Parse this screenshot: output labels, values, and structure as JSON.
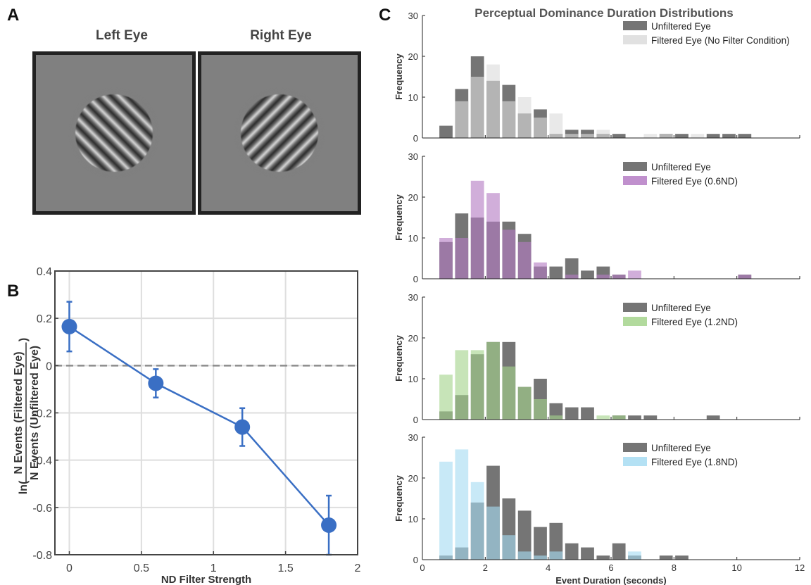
{
  "panels": {
    "a": "A",
    "b": "B",
    "c": "C"
  },
  "panel_a": {
    "left_title": "Left Eye",
    "right_title": "Right Eye"
  },
  "colors": {
    "marker_blue": "#3a6fc4",
    "unfiltered": "#6e6e6e",
    "no_filter": "#dcdcdc",
    "nd06": "#b57cc4",
    "nd12": "#a5d38c",
    "nd18": "#a7dcf2"
  },
  "chart_data": [
    {
      "type": "line",
      "panel": "B",
      "xlabel": "ND Filter Strength",
      "ylabel_prefix": "ln(",
      "ylabel_numerator": "N Events (Filtered Eye)",
      "ylabel_denominator": "N Events (Unfiltered Eye)",
      "ylabel_suffix": ")",
      "xlim": [
        -0.1,
        2
      ],
      "ylim": [
        -0.8,
        0.4
      ],
      "xticks": [
        0,
        0.5,
        1,
        1.5,
        2
      ],
      "xtick_labels": [
        "0",
        "0.5",
        "1",
        "1.5",
        "2"
      ],
      "yticks": [
        0.4,
        0.2,
        0,
        -0.2,
        -0.4,
        -0.6,
        -0.8
      ],
      "ytick_labels": [
        "0.4",
        "0.2",
        "0",
        "-0.2",
        "-0.4",
        "-0.6",
        "-0.8"
      ],
      "grid": true,
      "reference_line_y": 0,
      "x": [
        0,
        0.6,
        1.2,
        1.8
      ],
      "y": [
        0.165,
        -0.075,
        -0.26,
        -0.675
      ],
      "yerr_low": [
        0.06,
        -0.135,
        -0.34,
        -0.8
      ],
      "yerr_high": [
        0.27,
        -0.015,
        -0.18,
        -0.55
      ]
    },
    {
      "type": "bar",
      "panel": "C",
      "title": "Perceptual Dominance Duration Distributions",
      "xlabel": "Event Duration (seconds)",
      "ylabel": "Frequency",
      "xlim": [
        0,
        12
      ],
      "ylim": [
        0,
        30
      ],
      "bin_width": 0.5,
      "bin_centers": [
        0.75,
        1.25,
        1.75,
        2.25,
        2.75,
        3.25,
        3.75,
        4.25,
        4.75,
        5.25,
        5.75,
        6.25,
        6.75,
        7.25,
        7.75,
        8.25,
        8.75,
        9.25,
        9.75,
        10.25,
        10.75
      ],
      "xticks": [
        0,
        2,
        4,
        6,
        8,
        10,
        12
      ],
      "xtick_labels": [
        "0",
        "2",
        "4",
        "6",
        "8",
        "10",
        "12"
      ],
      "yticks": [
        0,
        10,
        20,
        30
      ],
      "ytick_labels": [
        "0",
        "10",
        "20",
        "30"
      ],
      "legend_position": "top-right",
      "subplots": [
        {
          "series": [
            {
              "name": "Unfiltered Eye",
              "color": "#6e6e6e",
              "values": [
                3,
                12,
                20,
                14,
                13,
                6,
                7,
                1,
                2,
                2,
                1,
                1,
                0,
                0,
                1,
                1,
                0,
                1,
                1,
                1,
                0
              ]
            },
            {
              "name": "Filtered Eye (No Filter Condition)",
              "color": "#dcdcdc",
              "values": [
                0,
                9,
                15,
                18,
                9,
                10,
                5,
                6,
                1,
                1,
                2,
                0,
                0,
                1,
                1,
                0,
                1,
                0,
                0,
                0,
                0
              ]
            }
          ]
        },
        {
          "series": [
            {
              "name": "Unfiltered Eye",
              "color": "#6e6e6e",
              "values": [
                9,
                16,
                15,
                14,
                14,
                11,
                3,
                3,
                5,
                2,
                3,
                1,
                0,
                0,
                0,
                0,
                0,
                0,
                0,
                1,
                0
              ]
            },
            {
              "name": "Filtered Eye (0.6ND)",
              "color": "#b57cc4",
              "values": [
                10,
                10,
                24,
                21,
                12,
                9,
                4,
                0,
                1,
                0,
                1,
                1,
                2,
                0,
                0,
                0,
                0,
                0,
                0,
                1,
                0
              ]
            }
          ]
        },
        {
          "series": [
            {
              "name": "Unfiltered Eye",
              "color": "#6e6e6e",
              "values": [
                2,
                6,
                16,
                19,
                19,
                8,
                10,
                4,
                3,
                3,
                0,
                1,
                1,
                1,
                0,
                0,
                0,
                1,
                0,
                0,
                0
              ]
            },
            {
              "name": "Filtered Eye (1.2ND)",
              "color": "#a5d38c",
              "values": [
                11,
                17,
                17,
                19,
                13,
                8,
                5,
                1,
                0,
                0,
                1,
                1,
                0,
                0,
                0,
                0,
                0,
                0,
                0,
                0,
                0
              ]
            }
          ]
        },
        {
          "series": [
            {
              "name": "Unfiltered Eye",
              "color": "#6e6e6e",
              "values": [
                1,
                3,
                14,
                23,
                15,
                12,
                8,
                9,
                4,
                3,
                1,
                4,
                1,
                0,
                1,
                1,
                0,
                0,
                0,
                0,
                0
              ]
            },
            {
              "name": "Filtered Eye (1.8ND)",
              "color": "#a7dcf2",
              "values": [
                24,
                27,
                19,
                13,
                6,
                2,
                1,
                2,
                0,
                0,
                0,
                0,
                2,
                0,
                0,
                0,
                0,
                0,
                0,
                0,
                0
              ]
            }
          ]
        }
      ]
    }
  ]
}
